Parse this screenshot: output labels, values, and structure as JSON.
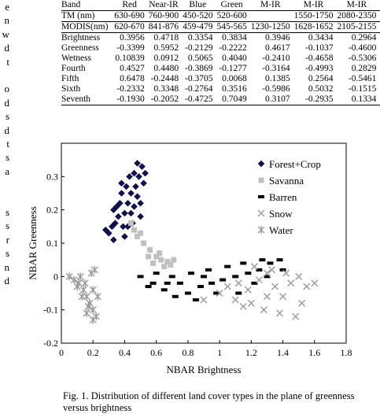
{
  "side_text": [
    "e",
    "n",
    "w",
    "d",
    "t",
    "",
    "o",
    "d",
    "s",
    "d",
    "t",
    "s",
    "a",
    "",
    "",
    "s",
    "s",
    "r",
    "s",
    "n",
    "d"
  ],
  "table": {
    "band_row": [
      "Band",
      "Red",
      "Near-IR",
      "Blue",
      "Green",
      "M-IR",
      "M-IR",
      "M-IR"
    ],
    "tm_row": [
      "TM (nm)",
      "630-690",
      "760-900",
      "450-520",
      "520-600",
      "",
      "1550-1750",
      "2080-2350"
    ],
    "modis_row": [
      "MODIS(nm)",
      "620-670",
      "841-876",
      "459-479",
      "545-565",
      "1230-1250",
      "1628-1652",
      "2105-2155"
    ],
    "rows": [
      {
        "label": "Brightness",
        "values": [
          "0.3956",
          "0.4718",
          "0.3354",
          "0.3834",
          "0.3946",
          "0.3434",
          "0.2964"
        ]
      },
      {
        "label": "Greenness",
        "values": [
          "-0.3399",
          "0.5952",
          "-0.2129",
          "-0.2222",
          "0.4617",
          "-0.1037",
          "-0.4600"
        ]
      },
      {
        "label": "Wetness",
        "values": [
          "0.10839",
          "0.0912",
          "0.5065",
          "0.4040",
          "-0.2410",
          "-0.4658",
          "-0.5306"
        ]
      },
      {
        "label": "Fourth",
        "values": [
          "0.4527",
          "0.4480",
          "-0.3869",
          "-0.1277",
          "-0.3164",
          "-0.4993",
          "0.2829"
        ]
      },
      {
        "label": "Fifth",
        "values": [
          "0.6478",
          "-0.2448",
          "-0.3705",
          "0.0068",
          "0.1385",
          "0.2564",
          "-0.5461"
        ]
      },
      {
        "label": "Sixth",
        "values": [
          "-0.2332",
          "0.3348",
          "-0.2764",
          "0.3516",
          "-0.5986",
          "0.5032",
          "-0.1515"
        ]
      },
      {
        "label": "Seventh",
        "values": [
          "-0.1930",
          "-0.2052",
          "-0.4725",
          "0.7049",
          "0.3107",
          "-0.2935",
          "0.1334"
        ]
      }
    ]
  },
  "chart_data": {
    "type": "scatter",
    "xlabel": "NBAR Brightness",
    "ylabel": "NBAR Greenness",
    "xlim": [
      0,
      1.8
    ],
    "ylim": [
      -0.2,
      0.4
    ],
    "xticks": [
      "0",
      "0.2",
      "0.4",
      "0.6",
      "0.8",
      "1",
      "1.2",
      "1.4",
      "1.6",
      "1.8"
    ],
    "yticks": [
      "-0.2",
      "-0.1",
      "0",
      "0.1",
      "0.2",
      "0.3"
    ],
    "legend_position": "top-right",
    "series": [
      {
        "name": "Forest+Crop",
        "marker": "diamond",
        "color": "#10105a",
        "points": [
          [
            0.28,
            0.14
          ],
          [
            0.33,
            0.2
          ],
          [
            0.38,
            0.25
          ],
          [
            0.43,
            0.3
          ],
          [
            0.48,
            0.34
          ],
          [
            0.51,
            0.33
          ],
          [
            0.52,
            0.28
          ],
          [
            0.5,
            0.22
          ],
          [
            0.45,
            0.16
          ],
          [
            0.4,
            0.12
          ],
          [
            0.33,
            0.11
          ],
          [
            0.3,
            0.13
          ],
          [
            0.36,
            0.18
          ],
          [
            0.42,
            0.22
          ],
          [
            0.47,
            0.27
          ],
          [
            0.49,
            0.3
          ],
          [
            0.46,
            0.31
          ],
          [
            0.41,
            0.27
          ],
          [
            0.37,
            0.22
          ],
          [
            0.34,
            0.16
          ],
          [
            0.39,
            0.15
          ],
          [
            0.44,
            0.19
          ],
          [
            0.48,
            0.24
          ],
          [
            0.35,
            0.21
          ],
          [
            0.4,
            0.19
          ],
          [
            0.44,
            0.25
          ],
          [
            0.46,
            0.21
          ],
          [
            0.42,
            0.15
          ],
          [
            0.32,
            0.15
          ],
          [
            0.38,
            0.28
          ],
          [
            0.53,
            0.31
          ],
          [
            0.5,
            0.18
          ]
        ]
      },
      {
        "name": "Savanna",
        "marker": "square",
        "color": "#c0c0c0",
        "points": [
          [
            0.44,
            0.16
          ],
          [
            0.48,
            0.12
          ],
          [
            0.52,
            0.1
          ],
          [
            0.56,
            0.08
          ],
          [
            0.6,
            0.06
          ],
          [
            0.63,
            0.05
          ],
          [
            0.67,
            0.045
          ],
          [
            0.71,
            0.05
          ],
          [
            0.58,
            0.04
          ],
          [
            0.65,
            0.03
          ],
          [
            0.55,
            0.06
          ],
          [
            0.62,
            0.07
          ],
          [
            0.5,
            0.13
          ],
          [
            0.46,
            0.14
          ],
          [
            0.69,
            0.035
          ]
        ]
      },
      {
        "name": "Barren",
        "marker": "rect",
        "color": "#000000",
        "points": [
          [
            0.5,
            0.0
          ],
          [
            0.58,
            -0.02
          ],
          [
            0.65,
            -0.04
          ],
          [
            0.72,
            -0.06
          ],
          [
            0.8,
            -0.05
          ],
          [
            0.88,
            -0.03
          ],
          [
            0.95,
            -0.02
          ],
          [
            1.02,
            -0.01
          ],
          [
            1.1,
            0.0
          ],
          [
            1.18,
            0.01
          ],
          [
            1.25,
            0.02
          ],
          [
            1.32,
            0.04
          ],
          [
            1.38,
            0.05
          ],
          [
            1.3,
            0.0
          ],
          [
            1.22,
            -0.02
          ],
          [
            0.9,
            0.0
          ],
          [
            0.75,
            -0.02
          ],
          [
            0.6,
            0.01
          ],
          [
            1.05,
            0.03
          ],
          [
            1.15,
            0.04
          ],
          [
            0.85,
            -0.07
          ],
          [
            0.98,
            -0.05
          ],
          [
            1.12,
            -0.05
          ],
          [
            0.7,
            0.0
          ],
          [
            1.4,
            0.02
          ],
          [
            1.27,
            0.05
          ],
          [
            0.93,
            0.02
          ],
          [
            0.82,
            0.01
          ],
          [
            0.55,
            -0.03
          ],
          [
            0.67,
            -0.02
          ]
        ]
      },
      {
        "name": "Snow",
        "marker": "x",
        "color": "#999999",
        "points": [
          [
            0.9,
            -0.07
          ],
          [
            1.0,
            -0.05
          ],
          [
            1.05,
            -0.03
          ],
          [
            1.12,
            -0.02
          ],
          [
            1.18,
            -0.04
          ],
          [
            1.25,
            -0.01
          ],
          [
            1.3,
            0.01
          ],
          [
            1.35,
            -0.03
          ],
          [
            1.4,
            -0.06
          ],
          [
            1.45,
            -0.02
          ],
          [
            1.5,
            0.0
          ],
          [
            1.55,
            -0.03
          ],
          [
            1.6,
            -0.02
          ],
          [
            1.2,
            -0.08
          ],
          [
            1.28,
            -0.1
          ],
          [
            1.38,
            -0.11
          ],
          [
            1.48,
            -0.12
          ],
          [
            1.1,
            -0.07
          ],
          [
            1.33,
            0.02
          ],
          [
            1.42,
            0.01
          ],
          [
            1.22,
            0.03
          ],
          [
            1.52,
            -0.08
          ],
          [
            1.3,
            -0.06
          ],
          [
            1.15,
            -0.09
          ]
        ]
      },
      {
        "name": "Water",
        "marker": "asterisk",
        "color": "#999999",
        "points": [
          [
            0.05,
            0.0
          ],
          [
            0.08,
            -0.01
          ],
          [
            0.11,
            -0.02
          ],
          [
            0.14,
            -0.04
          ],
          [
            0.16,
            -0.06
          ],
          [
            0.18,
            -0.08
          ],
          [
            0.2,
            -0.1
          ],
          [
            0.22,
            -0.12
          ],
          [
            0.12,
            0.0
          ],
          [
            0.15,
            -0.02
          ],
          [
            0.19,
            0.01
          ],
          [
            0.2,
            -0.04
          ],
          [
            0.17,
            -0.09
          ],
          [
            0.1,
            -0.03
          ],
          [
            0.21,
            0.02
          ],
          [
            0.23,
            -0.06
          ],
          [
            0.13,
            -0.06
          ],
          [
            0.16,
            -0.11
          ],
          [
            0.2,
            -0.13
          ]
        ]
      }
    ]
  },
  "caption": "Fig. 1. Distribution of different land cover types in the plane of greenness versus brightness"
}
